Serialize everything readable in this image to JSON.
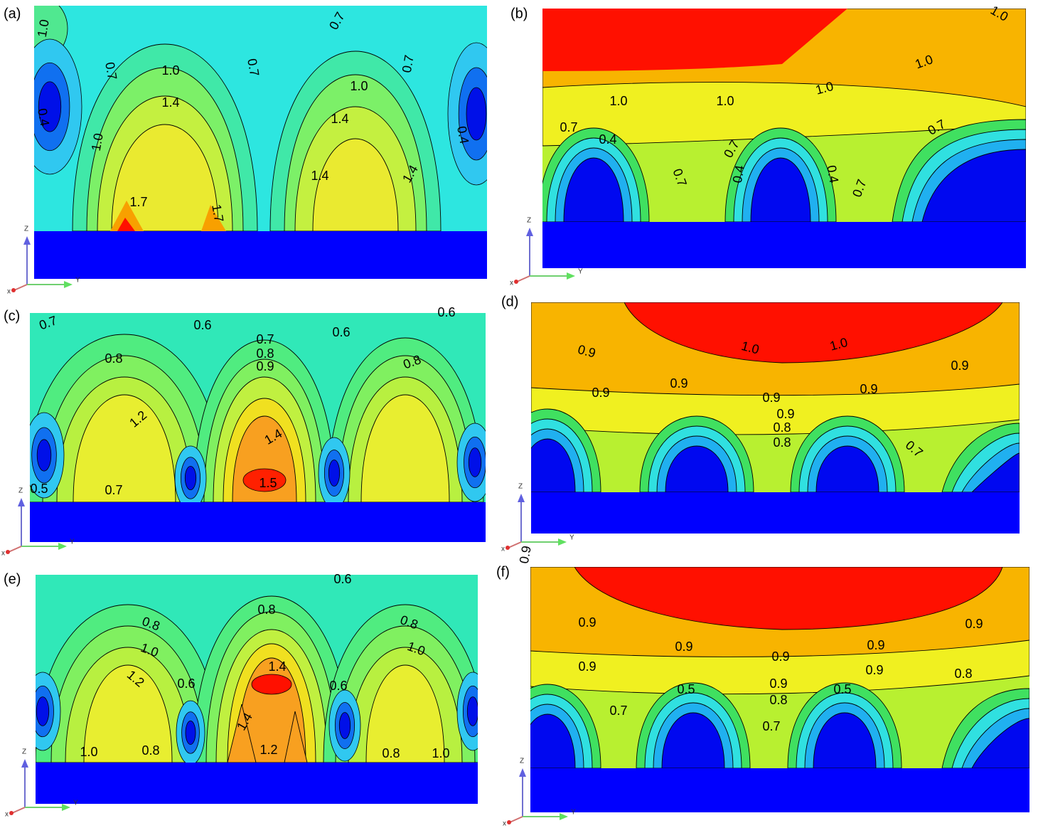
{
  "panels": [
    {
      "label": "(a)",
      "axes": {
        "z": "Z",
        "y": "Y",
        "x": "x"
      },
      "contour_labels": [
        "1.0",
        "0.7",
        "0.7",
        "1.0",
        "0.7",
        "0.7",
        "1.0",
        "0.4",
        "1.4",
        "1.4",
        "0.4",
        "1.7",
        "1.7",
        "1.4",
        "1.4",
        "1.0"
      ]
    },
    {
      "label": "(b)",
      "axes": {
        "z": "Z",
        "y": "Y",
        "x": "x"
      },
      "contour_labels": [
        "1.0",
        "1.0",
        "1.0",
        "1.0",
        "1.0",
        "0.7",
        "0.4",
        "0.7",
        "0.7",
        "0.4",
        "0.7",
        "0.4",
        "0.7"
      ]
    },
    {
      "label": "(c)",
      "axes": {
        "z": "Z",
        "y": "Y",
        "x": "x"
      },
      "contour_labels": [
        "0.7",
        "0.6",
        "0.6",
        "0.6",
        "0.7",
        "0.8",
        "0.9",
        "0.8",
        "0.8",
        "1.2",
        "1.4",
        "1.5",
        "0.5",
        "0.7"
      ]
    },
    {
      "label": "(d)",
      "axes": {
        "z": "Z",
        "y": "Y",
        "x": "x"
      },
      "contour_labels": [
        "0.9",
        "1.0",
        "1.0",
        "0.9",
        "0.9",
        "0.9",
        "0.9",
        "0.9",
        "0.8",
        "0.8",
        "0.7",
        "0.9"
      ]
    },
    {
      "label": "(e)",
      "axes": {
        "z": "Z",
        "y": "Y",
        "x": "x"
      },
      "contour_labels": [
        "0.6",
        "0.8",
        "0.8",
        "0.8",
        "1.0",
        "1.0",
        "1.2",
        "1.4",
        "0.6",
        "0.6",
        "1.4",
        "1.2",
        "1.0",
        "1.0",
        "0.8",
        "0.8"
      ]
    },
    {
      "label": "(f)",
      "axes": {
        "z": "Z",
        "y": "Y",
        "x": "x"
      },
      "contour_labels": [
        "0.9",
        "0.9",
        "0.9",
        "0.9",
        "0.9",
        "0.9",
        "0.9",
        "0.9",
        "0.8",
        "0.9",
        "0.8",
        "0.7",
        "0.5",
        "0.5",
        "0.7"
      ]
    }
  ]
}
